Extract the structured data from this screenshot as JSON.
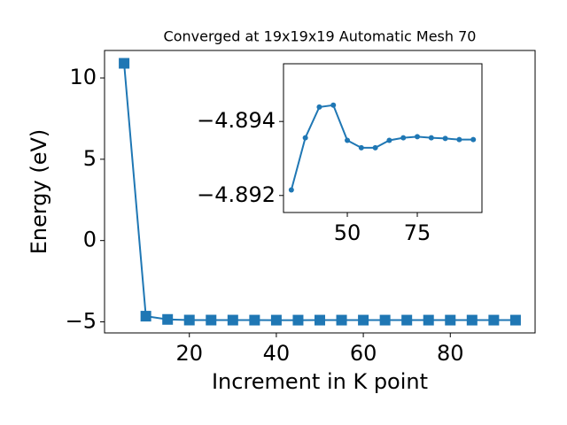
{
  "chart_data": [
    {
      "type": "line",
      "title": "Converged at 19x19x19 Automatic Mesh 70",
      "xlabel": "Increment in K point",
      "ylabel": "Energy (eV)",
      "marker": "square",
      "color": "#1f77b4",
      "x": [
        5,
        10,
        15,
        20,
        25,
        30,
        35,
        40,
        45,
        50,
        55,
        60,
        65,
        70,
        75,
        80,
        85,
        90,
        95
      ],
      "values": [
        10.9,
        -4.65,
        -4.85,
        -4.89,
        -4.891,
        -4.89215,
        -4.89356,
        -4.89439,
        -4.89444,
        -4.89349,
        -4.89329,
        -4.89329,
        -4.89349,
        -4.89356,
        -4.89359,
        -4.89356,
        -4.89354,
        -4.89351,
        -4.89351
      ],
      "xlim": [
        0.5,
        99.5
      ],
      "ylim": [
        -5.68,
        11.69
      ],
      "xticks": [
        20,
        40,
        60,
        80
      ],
      "yticks": [
        {
          "value": -5,
          "label": "−5"
        },
        0,
        5,
        10
      ]
    },
    {
      "type": "line",
      "marker": "circle",
      "color": "#1f77b4",
      "y_inverted": true,
      "x": [
        30,
        35,
        40,
        45,
        50,
        55,
        60,
        65,
        70,
        75,
        80,
        85,
        90,
        95
      ],
      "values": [
        -4.89215,
        -4.89356,
        -4.89439,
        -4.89444,
        -4.89349,
        -4.89329,
        -4.89329,
        -4.89349,
        -4.89356,
        -4.89359,
        -4.89356,
        -4.89354,
        -4.89351,
        -4.89351
      ],
      "xlim": [
        27.2,
        98.1
      ],
      "ylim": [
        -4.89154,
        -4.89556
      ],
      "xticks": [
        50,
        75
      ],
      "yticks": [
        {
          "value": -4.894,
          "label": "−4.894"
        },
        {
          "value": -4.892,
          "label": "−4.892"
        }
      ]
    }
  ]
}
